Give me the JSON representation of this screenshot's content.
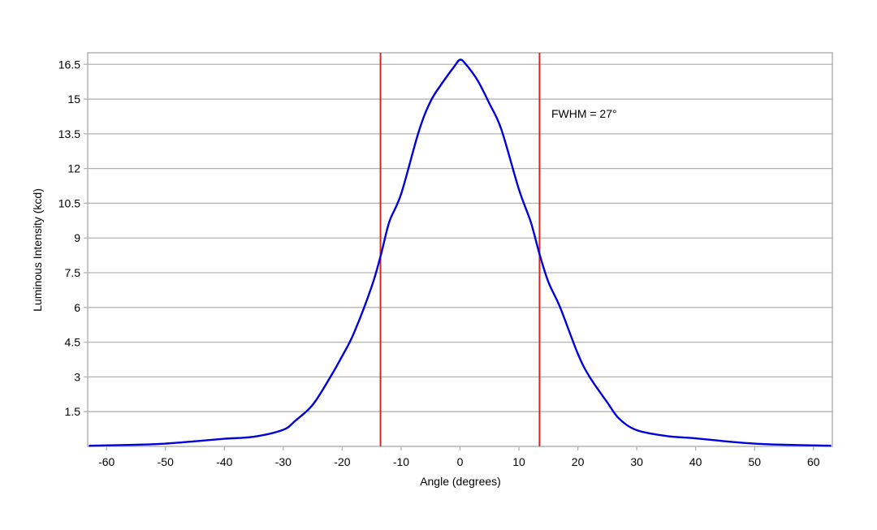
{
  "chart_data": {
    "type": "line",
    "title": "",
    "xlabel": "Angle (degrees)",
    "ylabel": "Luminous Intensity (kcd)",
    "xlim": [
      -63.2,
      63.2
    ],
    "ylim": [
      0,
      17
    ],
    "xticks": [
      -60,
      -50,
      -40,
      -30,
      -20,
      -10,
      0,
      10,
      20,
      30,
      40,
      50,
      60
    ],
    "yticks": [
      1.5,
      3,
      4.5,
      6,
      7.5,
      9,
      10.5,
      12,
      13.5,
      15,
      16.5
    ],
    "grid": {
      "horizontal": true,
      "vertical": false
    },
    "series": [
      {
        "color": "#0000dd",
        "x": [
          -63,
          -55,
          -50,
          -45,
          -40,
          -35,
          -30,
          -28,
          -25,
          -22,
          -20,
          -18,
          -15,
          -13.4,
          -12,
          -10,
          -7,
          -5,
          -3,
          -1,
          0,
          1,
          3,
          5,
          7,
          10,
          12,
          13.5,
          15,
          17,
          20,
          22,
          25,
          27,
          30,
          35,
          40,
          45,
          50,
          55,
          63
        ],
        "y": [
          0.03,
          0.07,
          0.12,
          0.22,
          0.33,
          0.42,
          0.72,
          1.1,
          1.8,
          3.0,
          3.9,
          4.9,
          6.9,
          8.3,
          9.7,
          10.9,
          13.6,
          14.9,
          15.7,
          16.4,
          16.7,
          16.5,
          15.8,
          14.8,
          13.7,
          11.1,
          9.7,
          8.3,
          7.1,
          6.0,
          4.0,
          3.0,
          1.9,
          1.2,
          0.7,
          0.45,
          0.35,
          0.22,
          0.12,
          0.07,
          0.03
        ]
      }
    ],
    "vertical_lines": {
      "color": "#dd2222",
      "x": [
        -13.5,
        13.5
      ]
    },
    "annotations": [
      {
        "text": "FWHM = 27°",
        "x": 15.5,
        "y": 14.2
      }
    ]
  }
}
